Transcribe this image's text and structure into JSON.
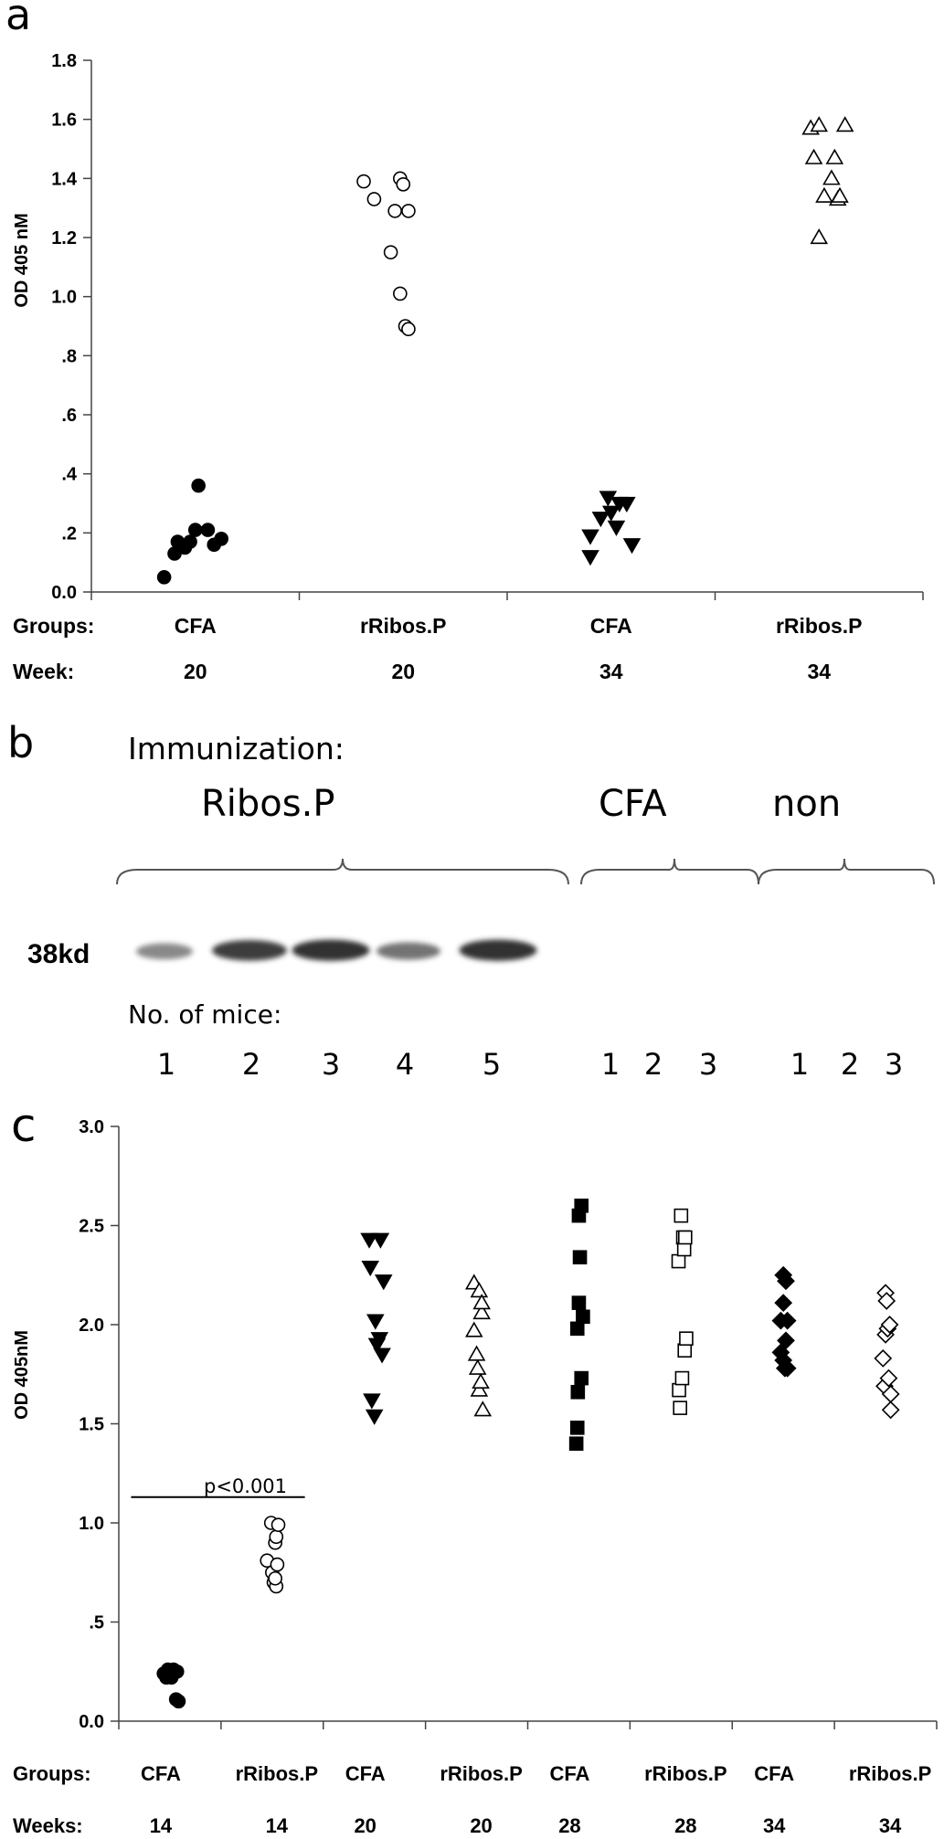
{
  "chart_data": [
    {
      "panel_label": "a",
      "type": "scatter",
      "ylabel": "OD 405 nM",
      "ylim": [
        0,
        1.8
      ],
      "yticks": [
        {
          "v": 0.0,
          "label": "0.0"
        },
        {
          "v": 0.2,
          "label": ".2"
        },
        {
          "v": 0.4,
          "label": ".4"
        },
        {
          "v": 0.6,
          "label": ".6"
        },
        {
          "v": 0.8,
          "label": ".8"
        },
        {
          "v": 1.0,
          "label": "1.0"
        },
        {
          "v": 1.2,
          "label": "1.2"
        },
        {
          "v": 1.4,
          "label": "1.4"
        },
        {
          "v": 1.6,
          "label": "1.6"
        },
        {
          "v": 1.8,
          "label": "1.8"
        }
      ],
      "row_labels": {
        "groups": "Groups:",
        "week": "Week:"
      },
      "groups": [
        {
          "group": "CFA",
          "week": "20",
          "marker": "circle-filled",
          "points": [
            [
              -0.3,
              0.05
            ],
            [
              -0.2,
              0.13
            ],
            [
              -0.17,
              0.17
            ],
            [
              -0.1,
              0.15
            ],
            [
              -0.05,
              0.17
            ],
            [
              0.0,
              0.21
            ],
            [
              0.03,
              0.36
            ],
            [
              0.12,
              0.21
            ],
            [
              0.18,
              0.16
            ],
            [
              0.25,
              0.18
            ]
          ]
        },
        {
          "group": "rRibos.P",
          "week": "20",
          "marker": "circle-open",
          "points": [
            [
              -0.38,
              1.39
            ],
            [
              -0.28,
              1.33
            ],
            [
              -0.12,
              1.15
            ],
            [
              -0.08,
              1.29
            ],
            [
              -0.03,
              1.01
            ],
            [
              -0.03,
              1.4
            ],
            [
              0.0,
              1.38
            ],
            [
              0.02,
              0.9
            ],
            [
              0.05,
              0.89
            ],
            [
              0.05,
              1.29
            ]
          ]
        },
        {
          "group": "CFA",
          "week": "34",
          "marker": "triangle-down-filled",
          "points": [
            [
              -0.2,
              0.12
            ],
            [
              -0.2,
              0.19
            ],
            [
              -0.1,
              0.25
            ],
            [
              -0.03,
              0.32
            ],
            [
              0.0,
              0.27
            ],
            [
              0.05,
              0.22
            ],
            [
              0.08,
              0.3
            ],
            [
              0.15,
              0.3
            ],
            [
              0.2,
              0.16
            ]
          ]
        },
        {
          "group": "rRibos.P",
          "week": "34",
          "marker": "triangle-up-open",
          "points": [
            [
              -0.08,
              1.57
            ],
            [
              -0.05,
              1.47
            ],
            [
              0.0,
              1.58
            ],
            [
              0.0,
              1.2
            ],
            [
              0.05,
              1.34
            ],
            [
              0.12,
              1.4
            ],
            [
              0.15,
              1.47
            ],
            [
              0.18,
              1.33
            ],
            [
              0.2,
              1.34
            ],
            [
              0.25,
              1.58
            ]
          ]
        }
      ]
    },
    {
      "panel_label": "c",
      "type": "scatter",
      "ylabel": "OD 405nM",
      "ylim": [
        0,
        3.0
      ],
      "yticks": [
        {
          "v": 0.0,
          "label": "0.0"
        },
        {
          "v": 0.5,
          "label": ".5"
        },
        {
          "v": 1.0,
          "label": "1.0"
        },
        {
          "v": 1.5,
          "label": "1.5"
        },
        {
          "v": 2.0,
          "label": "2.0"
        },
        {
          "v": 2.5,
          "label": "2.5"
        },
        {
          "v": 3.0,
          "label": "3.0"
        }
      ],
      "row_labels": {
        "groups": "Groups:",
        "week": "Weeks:"
      },
      "annotation": {
        "text": "p<0.001",
        "y": 1.13,
        "from_group": 0,
        "to_group": 1
      },
      "groups": [
        {
          "group": "CFA",
          "week": "14",
          "marker": "circle-filled",
          "points": [
            [
              -0.12,
              0.24
            ],
            [
              -0.07,
              0.22
            ],
            [
              -0.04,
              0.26
            ],
            [
              0.0,
              0.23
            ],
            [
              0.03,
              0.22
            ],
            [
              0.07,
              0.26
            ],
            [
              0.1,
              0.25
            ],
            [
              0.14,
              0.25
            ],
            [
              0.12,
              0.11
            ],
            [
              0.17,
              0.1
            ]
          ]
        },
        {
          "group": "rRibos.P",
          "week": "14",
          "marker": "circle-open",
          "points": [
            [
              -0.1,
              0.81
            ],
            [
              -0.02,
              1.0
            ],
            [
              0.0,
              0.75
            ],
            [
              0.03,
              0.7
            ],
            [
              0.06,
              0.9
            ],
            [
              0.08,
              0.68
            ],
            [
              0.08,
              0.93
            ],
            [
              0.1,
              0.79
            ],
            [
              0.12,
              0.99
            ],
            [
              0.06,
              0.72
            ]
          ]
        },
        {
          "group": "CFA",
          "week": "20",
          "marker": "triangle-down-filled",
          "points": [
            [
              -0.1,
              2.43
            ],
            [
              -0.08,
              2.29
            ],
            [
              -0.05,
              1.62
            ],
            [
              0.0,
              1.54
            ],
            [
              0.02,
              2.02
            ],
            [
              0.05,
              1.9
            ],
            [
              0.1,
              1.93
            ],
            [
              0.12,
              2.43
            ],
            [
              0.15,
              1.85
            ],
            [
              0.18,
              2.22
            ]
          ]
        },
        {
          "group": "rRibos.P",
          "week": "20",
          "marker": "triangle-up-open",
          "points": [
            [
              -0.05,
              2.21
            ],
            [
              -0.05,
              1.97
            ],
            [
              0.0,
              1.85
            ],
            [
              0.02,
              1.78
            ],
            [
              0.05,
              2.17
            ],
            [
              0.05,
              1.67
            ],
            [
              0.08,
              1.71
            ],
            [
              0.1,
              2.06
            ],
            [
              0.1,
              2.11
            ],
            [
              0.12,
              1.57
            ]
          ]
        },
        {
          "group": "CFA",
          "week": "28",
          "marker": "square-filled",
          "points": [
            [
              -0.05,
              1.4
            ],
            [
              -0.03,
              1.48
            ],
            [
              -0.02,
              1.66
            ],
            [
              -0.03,
              1.98
            ],
            [
              0.0,
              2.55
            ],
            [
              0.0,
              2.11
            ],
            [
              0.02,
              2.34
            ],
            [
              0.05,
              2.6
            ],
            [
              0.05,
              1.73
            ],
            [
              0.08,
              2.04
            ]
          ]
        },
        {
          "group": "rRibos.P",
          "week": "28",
          "marker": "square-open",
          "points": [
            [
              -0.05,
              2.32
            ],
            [
              -0.04,
              1.67
            ],
            [
              -0.02,
              1.58
            ],
            [
              0.0,
              2.55
            ],
            [
              0.02,
              1.73
            ],
            [
              0.04,
              2.44
            ],
            [
              0.06,
              2.38
            ],
            [
              0.07,
              1.87
            ],
            [
              0.08,
              2.44
            ],
            [
              0.1,
              1.93
            ]
          ]
        },
        {
          "group": "CFA",
          "week": "34",
          "marker": "diamond-filled",
          "points": [
            [
              -0.05,
              2.02
            ],
            [
              -0.05,
              1.86
            ],
            [
              0.0,
              2.25
            ],
            [
              0.0,
              2.11
            ],
            [
              0.0,
              1.82
            ],
            [
              0.03,
              1.78
            ],
            [
              0.05,
              1.92
            ],
            [
              0.08,
              1.78
            ],
            [
              0.08,
              2.02
            ],
            [
              0.05,
              2.22
            ]
          ]
        },
        {
          "group": "rRibos.P",
          "week": "34",
          "marker": "diamond-open",
          "points": [
            [
              -0.05,
              1.83
            ],
            [
              -0.02,
              1.69
            ],
            [
              0.0,
              2.16
            ],
            [
              0.0,
              1.95
            ],
            [
              0.02,
              2.12
            ],
            [
              0.04,
              1.98
            ],
            [
              0.06,
              1.73
            ],
            [
              0.08,
              2.0
            ],
            [
              0.1,
              1.57
            ],
            [
              0.1,
              1.65
            ]
          ]
        }
      ]
    }
  ],
  "blot": {
    "panel_label": "b",
    "heading": "Immunization:",
    "group_labels": [
      "Ribos.P",
      "CFA",
      "non"
    ],
    "band_label": "38kd",
    "mice_label": "No. of mice:",
    "ribos_lanes": [
      "1",
      "2",
      "3",
      "4",
      "5"
    ],
    "cfa_lanes": [
      "1",
      "2",
      "3"
    ],
    "non_lanes": [
      "1",
      "2",
      "3"
    ],
    "band_intensity": [
      0.55,
      0.9,
      0.95,
      0.65,
      0.95
    ]
  }
}
